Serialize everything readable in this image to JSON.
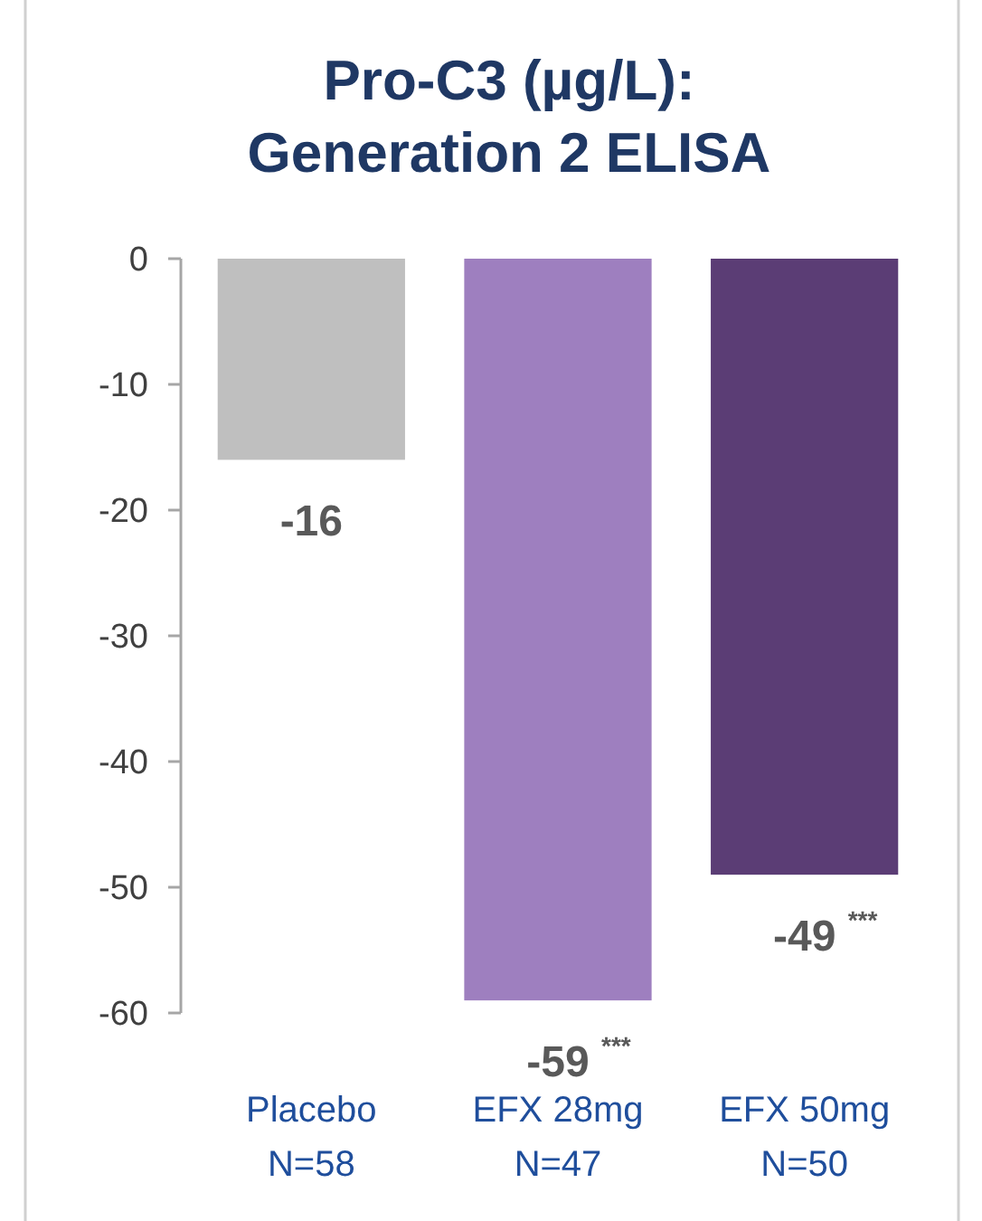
{
  "chart_data": {
    "type": "bar",
    "title": "Pro-C3 (µg/L):\nGeneration 2 ELISA",
    "categories": [
      "Placebo\nN=58",
      "EFX 28mg\nN=47",
      "EFX 50mg\nN=50"
    ],
    "values": [
      -16,
      -59,
      -49
    ],
    "colors": [
      "#bfbfbf",
      "#9e7fbf",
      "#5b3d75"
    ],
    "ylim": [
      -60,
      0
    ],
    "yticks": [
      0,
      -10,
      -20,
      -30,
      -40,
      -50,
      -60
    ],
    "data_labels": true,
    "grid": false,
    "annotations": [
      {
        "text": "***",
        "x": "EFX 28mg\nN=47",
        "y": -59
      },
      {
        "text": "***",
        "x": "EFX 50mg\nN=50",
        "y": -49
      }
    ]
  }
}
